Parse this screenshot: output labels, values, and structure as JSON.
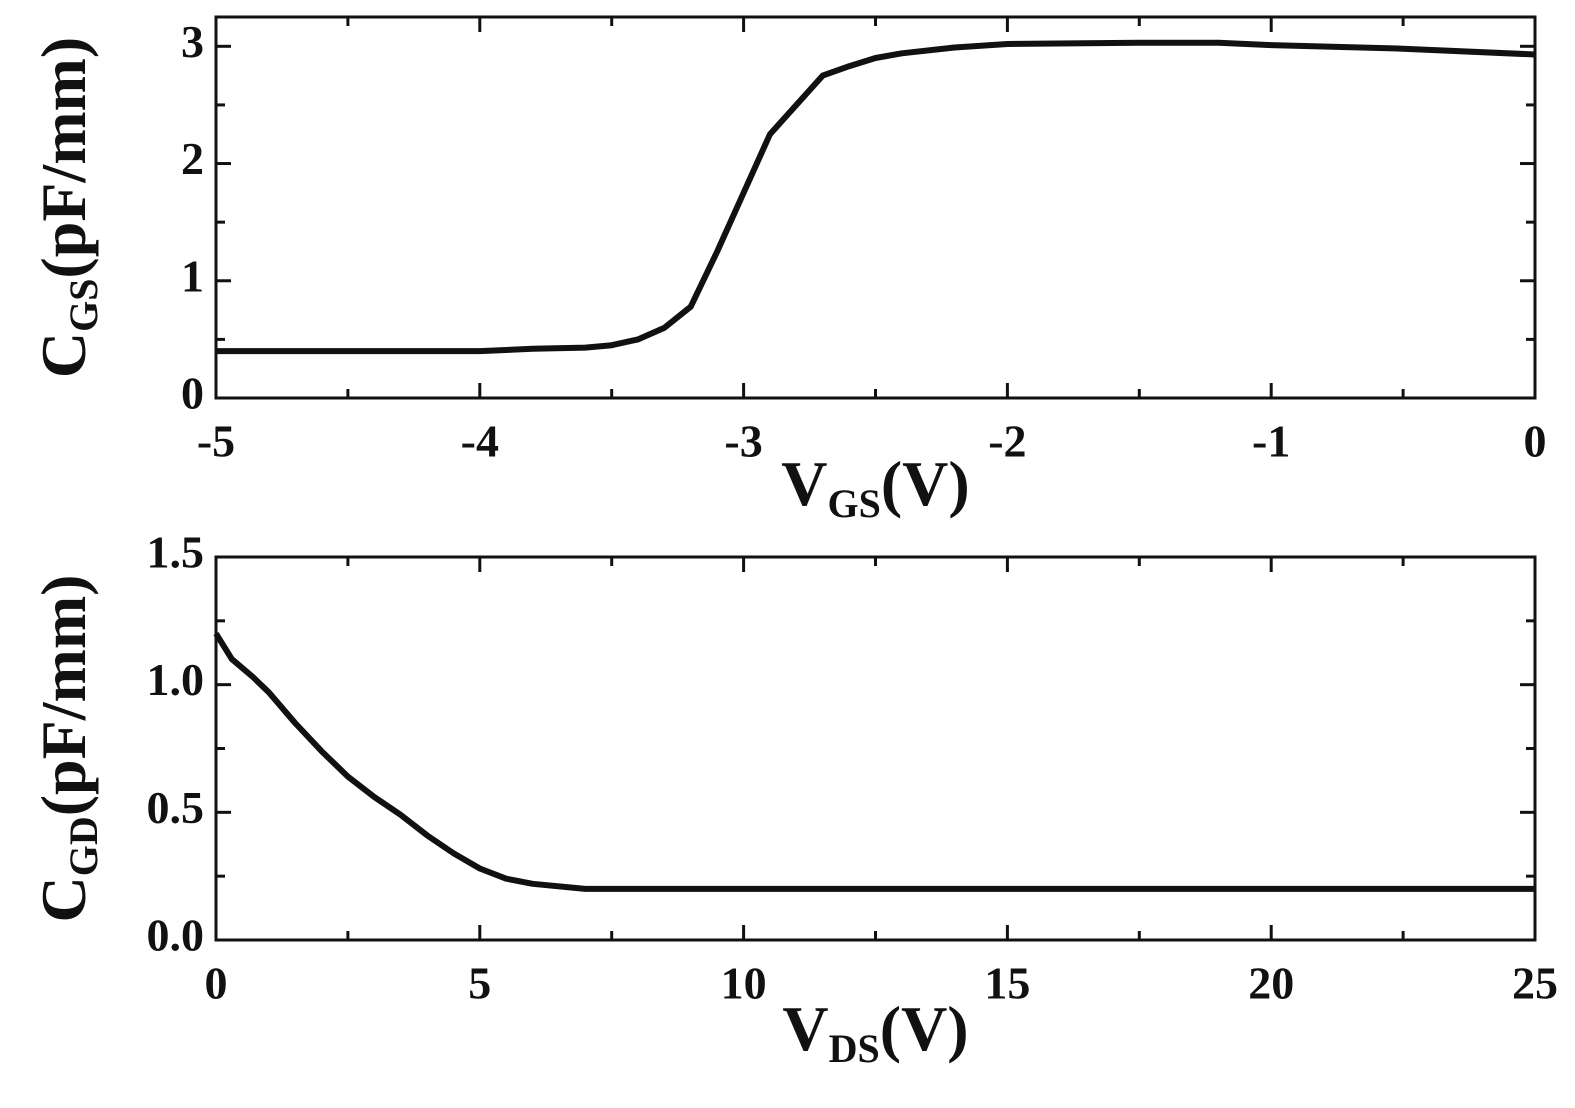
{
  "chart_data": [
    {
      "type": "line",
      "color": "#111111",
      "xlabel": {
        "text": "V",
        "subscript": "GS",
        "suffix": "(V)"
      },
      "ylabel": {
        "text": "C",
        "subscript": "GS",
        "suffix": "(pF/mm)"
      },
      "x": [
        -5,
        -4.5,
        -4,
        -3.8,
        -3.6,
        -3.5,
        -3.4,
        -3.3,
        -3.2,
        -3.1,
        -3.0,
        -2.9,
        -2.8,
        -2.7,
        -2.6,
        -2.5,
        -2.4,
        -2.2,
        -2.0,
        -1.5,
        -1.2,
        -1.0,
        -0.5,
        0
      ],
      "values": [
        0.4,
        0.4,
        0.4,
        0.42,
        0.43,
        0.45,
        0.5,
        0.6,
        0.78,
        1.25,
        1.75,
        2.25,
        2.5,
        2.75,
        2.83,
        2.9,
        2.94,
        2.99,
        3.02,
        3.03,
        3.03,
        3.01,
        2.98,
        2.93
      ],
      "xlim": [
        -5,
        0
      ],
      "xticks": [
        -5,
        -4,
        -3,
        -2,
        -1,
        0
      ],
      "ylim": [
        0,
        3.25
      ],
      "yticks": [
        0,
        1,
        2,
        3
      ]
    },
    {
      "type": "line",
      "color": "#111111",
      "xlabel": {
        "text": "V",
        "subscript": "DS",
        "suffix": "(V)"
      },
      "ylabel": {
        "text": "C",
        "subscript": "GD",
        "suffix": "(pF/mm)"
      },
      "x": [
        0,
        0.3,
        0.7,
        1,
        1.5,
        2,
        2.5,
        3,
        3.5,
        4,
        4.5,
        5,
        5.5,
        6,
        7,
        10,
        15,
        20,
        25
      ],
      "values": [
        1.2,
        1.1,
        1.03,
        0.97,
        0.85,
        0.74,
        0.64,
        0.56,
        0.49,
        0.41,
        0.34,
        0.28,
        0.24,
        0.22,
        0.2,
        0.2,
        0.2,
        0.2,
        0.2
      ],
      "xlim": [
        0,
        25
      ],
      "xticks": [
        0,
        5,
        10,
        15,
        20,
        25
      ],
      "ylim": [
        0,
        1.5
      ],
      "yticks": [
        {
          "value": 0,
          "label": "0.0"
        },
        {
          "value": 0.5,
          "label": "0.5"
        },
        {
          "value": 1,
          "label": "1.0"
        },
        {
          "value": 1.5,
          "label": "1.5"
        }
      ]
    }
  ]
}
